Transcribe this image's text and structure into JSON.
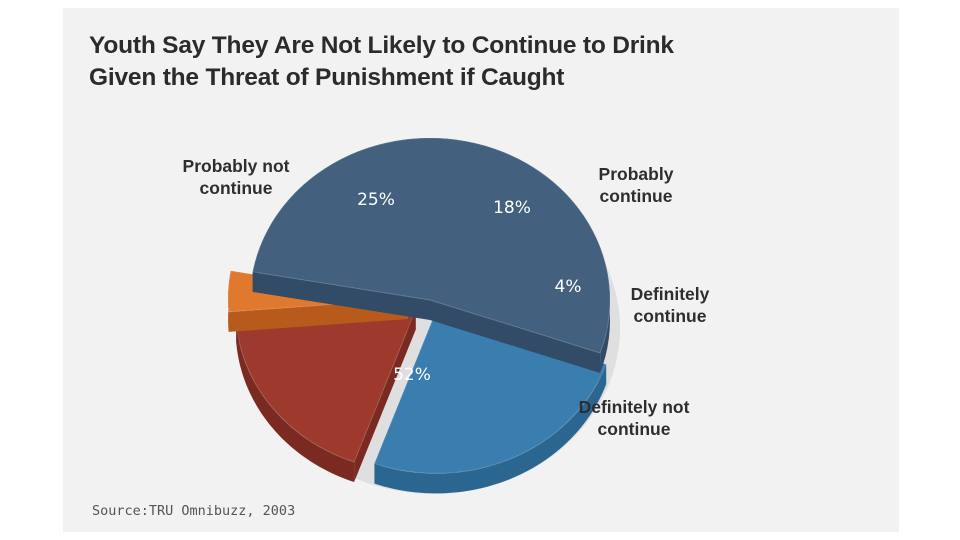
{
  "title_lines": [
    "Youth Say They Are Not Likely to Continue to Drink",
    "Given the Threat of Punishment if Caught"
  ],
  "source": "Source:TRU Omnibuzz, 2003",
  "chart_data": {
    "type": "pie",
    "title": "Youth Say They Are Not Likely to Continue to Drink Given the Threat of Punishment if Caught",
    "style": "3d-exploded",
    "slices": [
      {
        "label_lines": [
          "Definitely not",
          "continue"
        ],
        "value": 52,
        "display": "52%",
        "color": "#43607f",
        "side": "#324b66"
      },
      {
        "label_lines": [
          "Probably not",
          "continue"
        ],
        "value": 25,
        "display": "25%",
        "color": "#3a7eaf",
        "side": "#2b6690"
      },
      {
        "label_lines": [
          "Probably",
          "continue"
        ],
        "value": 18,
        "display": "18%",
        "color": "#9e3a2d",
        "side": "#7a2a20"
      },
      {
        "label_lines": [
          "Definitely",
          "continue"
        ],
        "value": 4,
        "display": "4%",
        "color": "#e0782e",
        "side": "#b85a1c"
      }
    ]
  }
}
